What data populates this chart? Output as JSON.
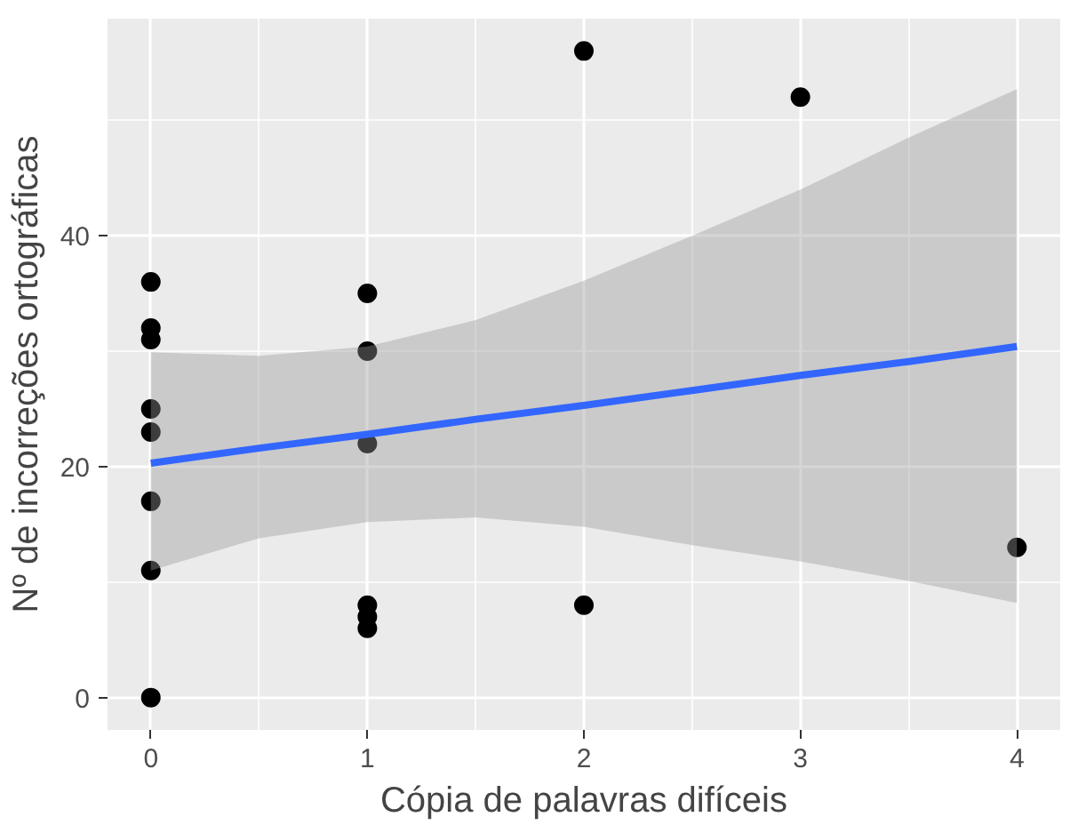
{
  "chart_data": {
    "type": "scatter",
    "xlabel": "Cópia de palavras difíceis",
    "ylabel": "Nº de incorreções ortográficas",
    "xlim": [
      -0.2,
      4.2
    ],
    "ylim": [
      -2.8,
      58.8
    ],
    "xticks": [
      0,
      1,
      2,
      3,
      4
    ],
    "yticks": [
      0,
      20,
      40
    ],
    "grid": true,
    "series": [
      {
        "marker": "circle",
        "color": "#000000",
        "x": [
          0,
          0,
          0,
          0,
          0,
          0,
          0,
          0,
          1,
          1,
          1,
          1,
          1,
          1,
          2,
          2,
          3,
          4
        ],
        "values": [
          36,
          32,
          31,
          25,
          23,
          17,
          11,
          0,
          35,
          30,
          22,
          8,
          7,
          6,
          56,
          8,
          52,
          13
        ]
      },
      {
        "type": "line",
        "marker": "none",
        "color": "#3366ff",
        "x": [
          0,
          0.5,
          1,
          1.5,
          2,
          2.5,
          3,
          3.5,
          4
        ],
        "values": [
          20.3,
          21.6,
          22.8,
          24.1,
          25.3,
          26.6,
          27.9,
          29.1,
          30.4
        ],
        "lower": [
          11,
          13.8,
          15.2,
          15.6,
          14.8,
          13.2,
          11.8,
          10.1,
          8.2
        ],
        "upper": [
          29.9,
          29.6,
          30.4,
          32.7,
          36.1,
          40,
          44,
          48.5,
          52.7
        ]
      }
    ]
  }
}
